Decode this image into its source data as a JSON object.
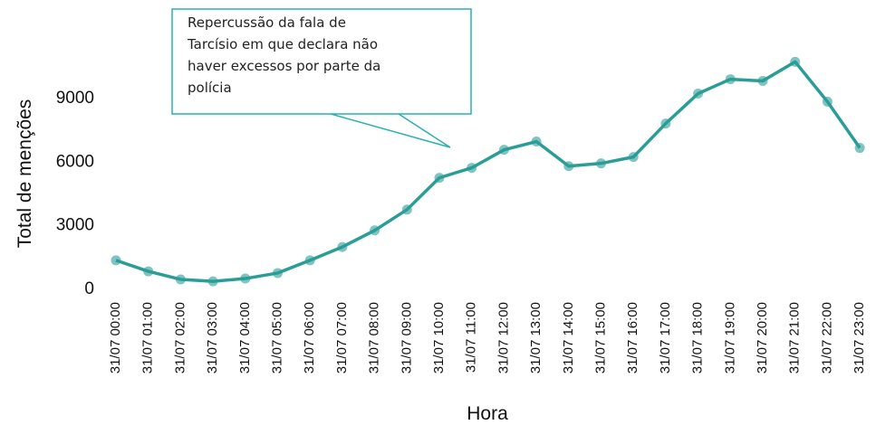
{
  "chart_data": {
    "type": "line",
    "annotation": [
      "Repercussão da fala de",
      "Tarcísio em que declara  não",
      "haver excessos por parte da",
      "polícia"
    ],
    "x_label": "Hora",
    "y_label": "Total de menções",
    "categories": [
      "31/07 00:00",
      "31/07 01:00",
      "31/07 02:00",
      "31/07 03:00",
      "31/07 04:00",
      "31/07 05:00",
      "31/07 06:00",
      "31/07 07:00",
      "31/07 08:00",
      "31/07 09:00",
      "31/07 10:00",
      "31/07 11:00",
      "31/07 12:00",
      "31/07 13:00",
      "31/07 14:00",
      "31/07 15:00",
      "31/07 16:00",
      "31/07 17:00",
      "31/07 18:00",
      "31/07 19:00",
      "31/07 20:00",
      "31/07 21:00",
      "31/07 22:00",
      "31/07 23:00"
    ],
    "values": [
      1370,
      850,
      470,
      380,
      510,
      770,
      1370,
      2000,
      2780,
      3760,
      5260,
      5730,
      6580,
      6970,
      5810,
      5940,
      6240,
      7820,
      9230,
      9910,
      9830,
      10730,
      8850,
      6670
    ],
    "color": "#2a9d96",
    "ylim": [
      0,
      11000
    ],
    "yticks": [
      0,
      3000,
      6000,
      9000
    ]
  }
}
